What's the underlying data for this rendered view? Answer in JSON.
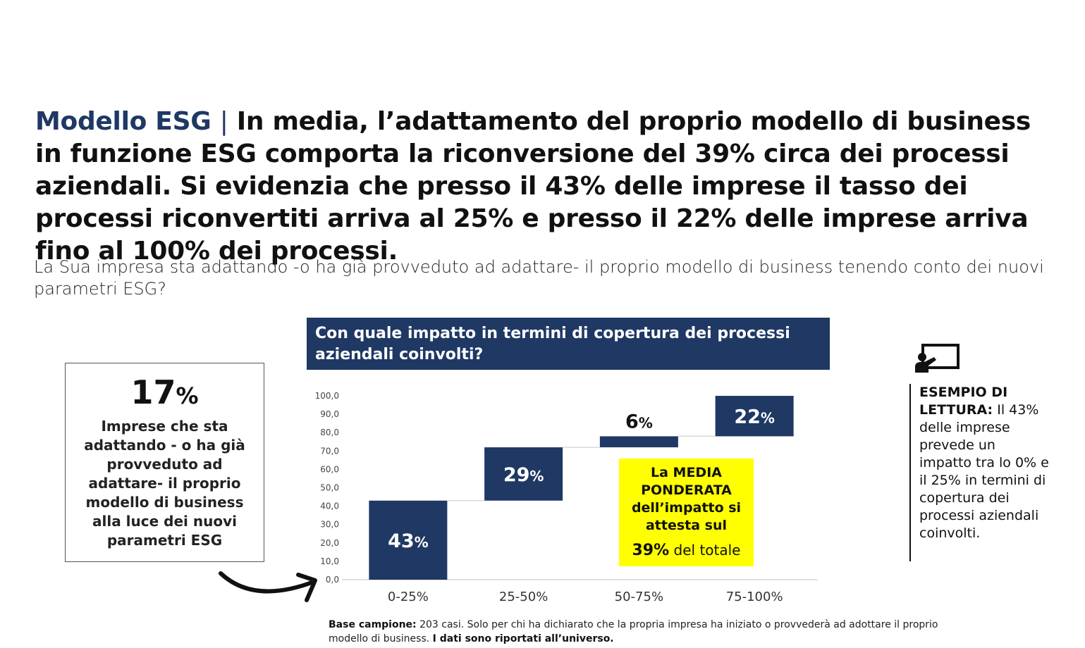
{
  "title": {
    "lead": "Modello ESG",
    "separator": "|",
    "text": "In media, l’adattamento del proprio modello di business in funzione ESG comporta la riconversione del 39% circa dei processi aziendali. Si evidenzia che presso il 43% delle imprese il tasso dei processi riconvertiti arriva al 25% e presso il 22% delle imprese arriva fino al 100% dei processi."
  },
  "question": "La Sua impresa sta adattando -o ha già provveduto ad adattare- il proprio modello di business tenendo conto dei nuovi parametri ESG?",
  "chart_header": "Con quale impatto in termini di copertura dei processi aziendali coinvolti?",
  "left_box": {
    "value": "17",
    "unit": "%",
    "description": "Imprese che sta adattando - o ha già provveduto ad adattare- il proprio modello di business alla luce dei nuovi parametri ESG"
  },
  "media_box": {
    "text": "La MEDIA PONDERATA dell’impatto si attesta sul",
    "total_value": "39%",
    "total_suffix": "del totale"
  },
  "reading_example": {
    "label": "ESEMPIO DI LETTURA:",
    "text": "Il 43% delle imprese prevede un impatto tra lo 0% e il 25% in termini di copertura dei processi aziendali coinvolti."
  },
  "footnote": {
    "label": "Base campione:",
    "text": "203 casi. Solo per chi ha dichiarato che la propria impresa ha iniziato o provvederà ad adottare il proprio modello di business.",
    "bold_text": "I dati sono riportati all’universo."
  },
  "colors": {
    "bar": "#1f3864",
    "header_bg": "#1f3864",
    "highlight": "#ffff00"
  },
  "chart_data": {
    "type": "bar",
    "subtype": "waterfall",
    "categories": [
      "0-25%",
      "25-50%",
      "50-75%",
      "75-100%"
    ],
    "values": [
      43,
      29,
      6,
      22
    ],
    "value_labels": [
      "43",
      "29",
      "6",
      "22"
    ],
    "label_unit": "%",
    "y_ticks": [
      "0,0",
      "10,0",
      "20,0",
      "30,0",
      "40,0",
      "50,0",
      "60,0",
      "70,0",
      "80,0",
      "90,0",
      "100,0"
    ],
    "ylim": [
      0,
      100
    ],
    "title": "",
    "xlabel": "",
    "ylabel": "",
    "grid": false,
    "legend": "none"
  }
}
